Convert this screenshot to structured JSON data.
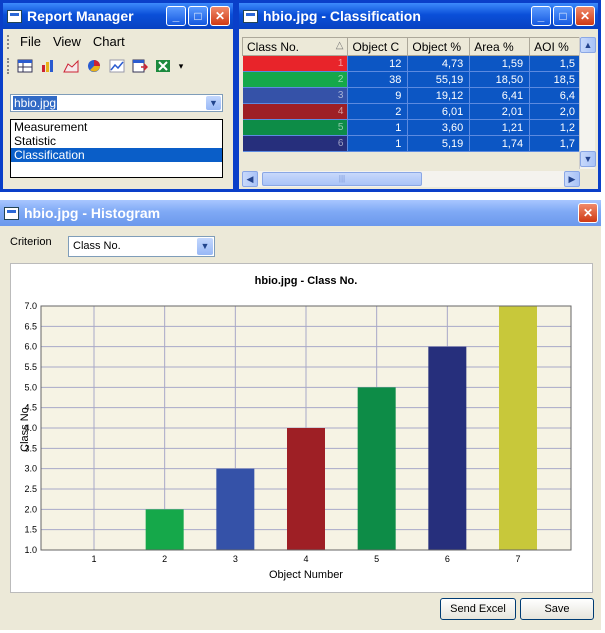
{
  "report_manager": {
    "title": "Report Manager",
    "menu": [
      "File",
      "View",
      "Chart"
    ],
    "toolbar_icons": [
      "table-icon",
      "bar-chart-icon",
      "area-chart-icon",
      "pie-chart-icon",
      "line-chart-icon",
      "export-icon",
      "excel-icon",
      "overflow-icon"
    ],
    "file_combo_value": "hbio.jpg",
    "list_items": [
      "Measurement",
      "Statistic",
      "Classification"
    ],
    "selected_list_item": "Classification"
  },
  "classification": {
    "title": "hbio.jpg - Classification",
    "columns": [
      "Class No.",
      "Object C",
      "Object %",
      "Area %",
      "AOI %"
    ],
    "rows": [
      {
        "color": "#e8242a",
        "class_no": "1",
        "object_count": "12",
        "object_pct": "4,73",
        "area_pct": "1,59",
        "aoi_pct": "1,5"
      },
      {
        "color": "#15a84a",
        "class_no": "2",
        "object_count": "38",
        "object_pct": "55,19",
        "area_pct": "18,50",
        "aoi_pct": "18,5"
      },
      {
        "color": "#3552a8",
        "class_no": "3",
        "object_count": "9",
        "object_pct": "19,12",
        "area_pct": "6,41",
        "aoi_pct": "6,4"
      },
      {
        "color": "#9e1f25",
        "class_no": "4",
        "object_count": "2",
        "object_pct": "6,01",
        "area_pct": "2,01",
        "aoi_pct": "2,0"
      },
      {
        "color": "#0d8c47",
        "class_no": "5",
        "object_count": "1",
        "object_pct": "3,60",
        "area_pct": "1,21",
        "aoi_pct": "1,2"
      },
      {
        "color": "#262f7c",
        "class_no": "6",
        "object_count": "1",
        "object_pct": "5,19",
        "area_pct": "1,74",
        "aoi_pct": "1,7"
      }
    ]
  },
  "histogram": {
    "title": "hbio.jpg - Histogram",
    "criterion_label": "Criterion",
    "criterion_value": "Class No.",
    "send_excel_label": "Send Excel",
    "save_label": "Save"
  },
  "chart_data": {
    "type": "bar",
    "title": "hbio.jpg - Class No.",
    "xlabel": "Object Number",
    "ylabel": "Class No.",
    "categories": [
      "1",
      "2",
      "3",
      "4",
      "5",
      "6",
      "7"
    ],
    "values": [
      1,
      2,
      3,
      4,
      5,
      6,
      7
    ],
    "colors": [
      "#e8242a",
      "#15a84a",
      "#3552a8",
      "#9e1f25",
      "#0d8c47",
      "#262f7c",
      "#c8c83a"
    ],
    "ylim": [
      1,
      7
    ],
    "yticks": [
      "1.0",
      "1.5",
      "2.0",
      "2.5",
      "3.0",
      "3.5",
      "4.0",
      "4.5",
      "5.0",
      "5.5",
      "6.0",
      "6.5",
      "7.0"
    ],
    "grid": true,
    "plot_background": "#f6f3e4"
  }
}
